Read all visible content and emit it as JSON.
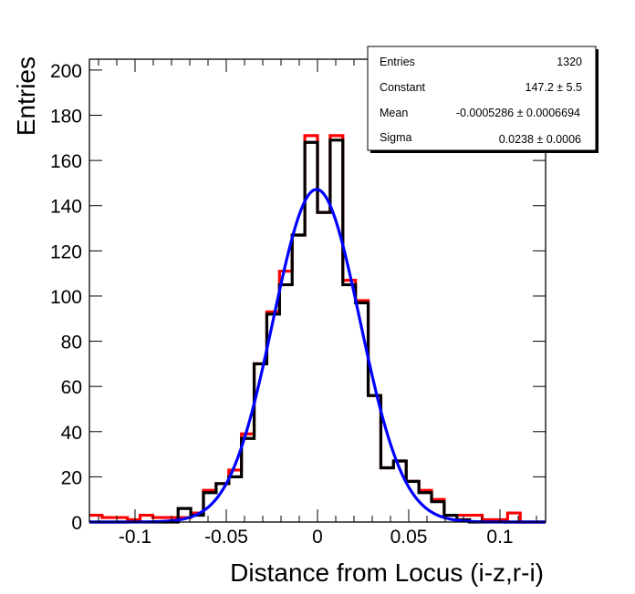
{
  "chart_data": {
    "type": "bar",
    "subtype": "histogram",
    "title": "",
    "xlabel": "Distance from Locus (i-z,r-i)",
    "ylabel": "Entries",
    "xlim": [
      -0.125,
      0.125
    ],
    "ylim": [
      0,
      205
    ],
    "nbins": 36,
    "x_ticks": [
      -0.1,
      -0.05,
      0,
      0.05,
      0.1
    ],
    "x_tick_labels": [
      "-0.1",
      "-0.05",
      "0",
      "0.05",
      "0.1"
    ],
    "y_ticks": [
      0,
      20,
      40,
      60,
      80,
      100,
      120,
      140,
      160,
      180,
      200
    ],
    "y_tick_labels": [
      "0",
      "20",
      "40",
      "60",
      "80",
      "100",
      "120",
      "140",
      "160",
      "180",
      "200"
    ],
    "grid": false,
    "series": [
      {
        "name": "histogram-red",
        "color": "#ff0000",
        "values": [
          3,
          2,
          2,
          1,
          3,
          2,
          2,
          2,
          4,
          14,
          17,
          23,
          39,
          70,
          93,
          111,
          127,
          171,
          137,
          171,
          107,
          98,
          56,
          24,
          27,
          18,
          14,
          10,
          3,
          3,
          3,
          1,
          1,
          4,
          0,
          0
        ]
      },
      {
        "name": "histogram-black",
        "color": "#000000",
        "values": [
          0,
          0,
          0,
          0,
          0,
          0,
          0,
          6,
          3,
          13,
          17,
          20,
          37,
          70,
          92,
          105,
          127,
          168,
          137,
          169,
          105,
          97,
          56,
          24,
          27,
          18,
          13,
          9,
          3,
          1,
          0,
          0,
          0,
          0,
          0,
          0
        ]
      }
    ],
    "fit": {
      "name": "gaussian-fit",
      "color": "#0000ff",
      "constant": 147.2,
      "mean": -0.0005286,
      "sigma": 0.0238
    },
    "legend_position": "top-right",
    "stats_box": {
      "rows": [
        {
          "label": "Entries",
          "value": "1320"
        },
        {
          "label": "Constant",
          "value": "147.2 ± 5.5"
        },
        {
          "label": "Mean",
          "value": "-0.0005286  ± 0.0006694"
        },
        {
          "label": "Sigma",
          "value": "0.0238 ± 0.0006"
        }
      ]
    }
  }
}
